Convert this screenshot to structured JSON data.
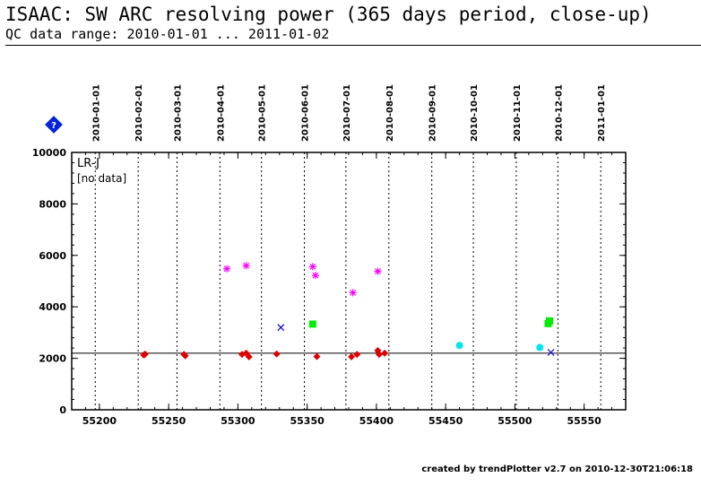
{
  "header": {
    "title": "ISAAC: SW ARC resolving power (365 days period, close-up)",
    "subtitle": "QC data range: 2010-01-01 ... 2011-01-02"
  },
  "footer": {
    "credit": "created by trendPlotter v2.7 on 2010-12-30T21:06:18"
  },
  "chart_data": {
    "type": "scatter",
    "panel_label": "LR-J",
    "no_data_label": "[no data]",
    "info_icon_text": "?",
    "xlim": [
      55180,
      55580
    ],
    "ylim": [
      0,
      10000
    ],
    "x_ticks": [
      55200,
      55250,
      55300,
      55350,
      55400,
      55450,
      55500,
      55550
    ],
    "y_ticks": [
      0,
      2000,
      4000,
      6000,
      8000,
      10000
    ],
    "date_ticks": [
      {
        "label": "2010-01-01",
        "x": 55197
      },
      {
        "label": "2010-02-01",
        "x": 55228
      },
      {
        "label": "2010-03-01",
        "x": 55256
      },
      {
        "label": "2010-04-01",
        "x": 55287
      },
      {
        "label": "2010-05-01",
        "x": 55317
      },
      {
        "label": "2010-06-01",
        "x": 55348
      },
      {
        "label": "2010-07-01",
        "x": 55378
      },
      {
        "label": "2010-08-01",
        "x": 55409
      },
      {
        "label": "2010-09-01",
        "x": 55440
      },
      {
        "label": "2010-10-01",
        "x": 55470
      },
      {
        "label": "2010-11-01",
        "x": 55501
      },
      {
        "label": "2010-12-01",
        "x": 55531
      },
      {
        "label": "2011-01-01",
        "x": 55562
      }
    ],
    "reference_line": 2200,
    "colors": {
      "diamond": "#dd0000",
      "star": "#ff00ff",
      "square": "#00ee00",
      "circle": "#00e5ee",
      "cross": "#0000cc",
      "icon": "#0022dd"
    },
    "series": [
      {
        "marker": "diamond",
        "points": [
          [
            55232,
            2130
          ],
          [
            55233,
            2160
          ],
          [
            55261,
            2150
          ],
          [
            55262,
            2100
          ],
          [
            55303,
            2150
          ],
          [
            55306,
            2200
          ],
          [
            55308,
            2060
          ],
          [
            55328,
            2170
          ],
          [
            55357,
            2070
          ],
          [
            55382,
            2060
          ],
          [
            55386,
            2150
          ],
          [
            55401,
            2300
          ],
          [
            55402,
            2150
          ],
          [
            55406,
            2200
          ]
        ]
      },
      {
        "marker": "star",
        "points": [
          [
            55292,
            5480
          ],
          [
            55306,
            5600
          ],
          [
            55354,
            5560
          ],
          [
            55356,
            5220
          ],
          [
            55383,
            4550
          ],
          [
            55401,
            5380
          ]
        ]
      },
      {
        "marker": "square",
        "points": [
          [
            55354,
            3330
          ],
          [
            55524,
            3350
          ],
          [
            55525,
            3450
          ]
        ]
      },
      {
        "marker": "circle",
        "points": [
          [
            55460,
            2500
          ],
          [
            55518,
            2420
          ]
        ]
      },
      {
        "marker": "cross",
        "points": [
          [
            55331,
            3200
          ],
          [
            55526,
            2230
          ]
        ]
      }
    ]
  }
}
